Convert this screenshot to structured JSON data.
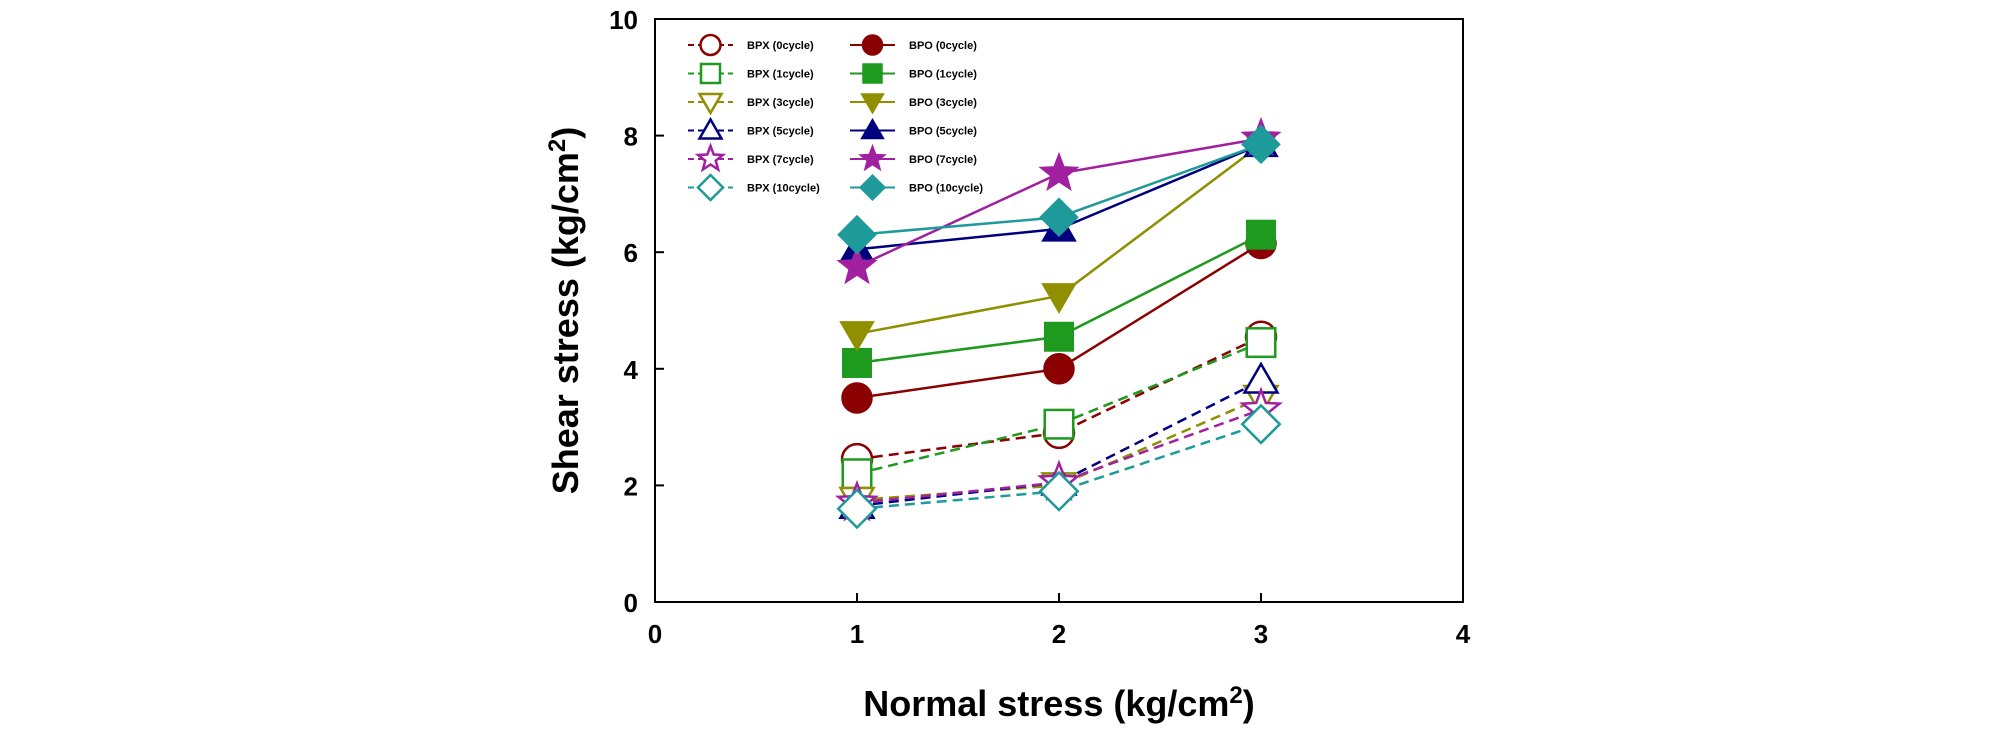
{
  "chart_data": {
    "type": "line",
    "xlabel": "Normal stress (kg/cm",
    "xlabel_sup": "2",
    "xlabel_end": ")",
    "ylabel": "Shear stress (kg/cm",
    "ylabel_sup": "2",
    "ylabel_end": ")",
    "xlim": [
      0,
      4
    ],
    "ylim": [
      0,
      10
    ],
    "x_ticks": [
      "0",
      "1",
      "2",
      "3",
      "4"
    ],
    "y_ticks": [
      "0",
      "2",
      "4",
      "6",
      "8",
      "10"
    ],
    "grid": false,
    "legend_position": "top-left",
    "x": [
      1,
      2,
      3
    ],
    "series": [
      {
        "name": "BPX (0cycle)",
        "values": [
          2.45,
          2.9,
          4.55
        ],
        "color": "#8B0000",
        "marker": "circle",
        "filled": false,
        "dashed": true
      },
      {
        "name": "BPX (1cycle)",
        "values": [
          2.2,
          3.05,
          4.45
        ],
        "color": "#1E9A1E",
        "marker": "square",
        "filled": false,
        "dashed": true
      },
      {
        "name": "BPX (3cycle)",
        "values": [
          1.75,
          2.0,
          3.5
        ],
        "color": "#8F8F00",
        "marker": "triangle-down",
        "filled": false,
        "dashed": true
      },
      {
        "name": "BPX (5cycle)",
        "values": [
          1.65,
          2.05,
          3.8
        ],
        "color": "#00007F",
        "marker": "triangle-up",
        "filled": false,
        "dashed": true
      },
      {
        "name": "BPX (7cycle)",
        "values": [
          1.7,
          2.05,
          3.3
        ],
        "color": "#A020A0",
        "marker": "star",
        "filled": false,
        "dashed": true
      },
      {
        "name": "BPX (10cycle)",
        "values": [
          1.6,
          1.9,
          3.05
        ],
        "color": "#1E9A9A",
        "marker": "diamond",
        "filled": false,
        "dashed": true
      },
      {
        "name": "BPO (0cycle)",
        "values": [
          3.5,
          4.0,
          6.15
        ],
        "color": "#8B0000",
        "marker": "circle",
        "filled": true,
        "dashed": false
      },
      {
        "name": "BPO (1cycle)",
        "values": [
          4.1,
          4.55,
          6.3
        ],
        "color": "#1E9A1E",
        "marker": "square",
        "filled": true,
        "dashed": false
      },
      {
        "name": "BPO (3cycle)",
        "values": [
          4.6,
          5.25,
          7.85
        ],
        "color": "#8F8F00",
        "marker": "triangle-down",
        "filled": true,
        "dashed": false
      },
      {
        "name": "BPO (5cycle)",
        "values": [
          6.05,
          6.4,
          7.85
        ],
        "color": "#00007F",
        "marker": "triangle-up",
        "filled": true,
        "dashed": false
      },
      {
        "name": "BPO (7cycle)",
        "values": [
          5.75,
          7.35,
          7.95
        ],
        "color": "#A020A0",
        "marker": "star",
        "filled": true,
        "dashed": false
      },
      {
        "name": "BPO (10cycle)",
        "values": [
          6.3,
          6.6,
          7.85
        ],
        "color": "#1E9A9A",
        "marker": "diamond",
        "filled": true,
        "dashed": false
      }
    ]
  }
}
